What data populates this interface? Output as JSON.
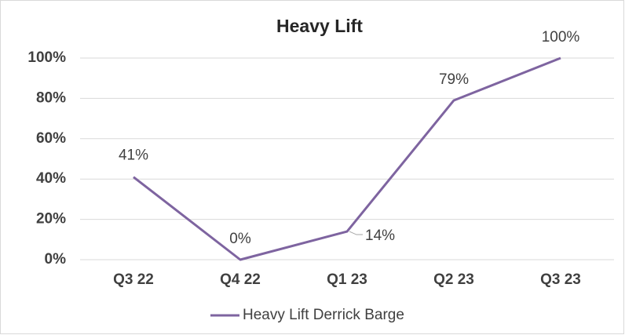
{
  "chart_data": {
    "type": "line",
    "title": "Heavy Lift",
    "categories": [
      "Q3 22",
      "Q4 22",
      "Q1 23",
      "Q2 23",
      "Q3 23"
    ],
    "series": [
      {
        "name": "Heavy Lift Derrick Barge",
        "color": "#7e64a0",
        "values": [
          41,
          0,
          14,
          79,
          100
        ],
        "value_labels": [
          "41%",
          "0%",
          "14%",
          "79%",
          "100%"
        ]
      }
    ],
    "ylim": [
      0,
      100
    ],
    "yticks": [
      {
        "value": 0,
        "label": "0%"
      },
      {
        "value": 20,
        "label": "20%"
      },
      {
        "value": 40,
        "label": "40%"
      },
      {
        "value": 60,
        "label": "60%"
      },
      {
        "value": 80,
        "label": "80%"
      },
      {
        "value": 100,
        "label": "100%"
      }
    ],
    "grid": true,
    "legend": "bottom"
  }
}
